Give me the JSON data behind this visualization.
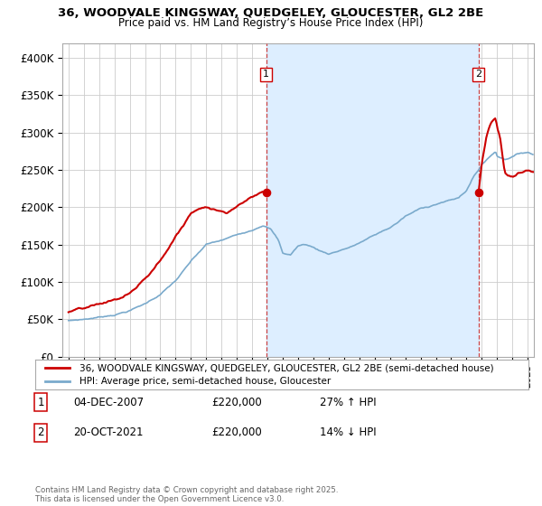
{
  "title": "36, WOODVALE KINGSWAY, QUEDGELEY, GLOUCESTER, GL2 2BE",
  "subtitle": "Price paid vs. HM Land Registry’s House Price Index (HPI)",
  "ylim": [
    0,
    420000
  ],
  "yticks": [
    0,
    50000,
    100000,
    150000,
    200000,
    250000,
    300000,
    350000,
    400000
  ],
  "ytick_labels": [
    "£0",
    "£50K",
    "£100K",
    "£150K",
    "£200K",
    "£250K",
    "£300K",
    "£350K",
    "£400K"
  ],
  "legend_label_red": "36, WOODVALE KINGSWAY, QUEDGELEY, GLOUCESTER, GL2 2BE (semi-detached house)",
  "legend_label_blue": "HPI: Average price, semi-detached house, Gloucester",
  "transaction1_date": "04-DEC-2007",
  "transaction1_price": "£220,000",
  "transaction1_hpi": "27% ↑ HPI",
  "transaction2_date": "20-OCT-2021",
  "transaction2_price": "£220,000",
  "transaction2_hpi": "14% ↓ HPI",
  "footer": "Contains HM Land Registry data © Crown copyright and database right 2025.\nThis data is licensed under the Open Government Licence v3.0.",
  "color_red": "#cc0000",
  "color_blue": "#7aaacc",
  "color_vline": "#cc4444",
  "shade_color": "#ddeeff",
  "background_color": "#ffffff",
  "grid_color": "#cccccc",
  "sale1_x": 2007.92,
  "sale1_y": 220000,
  "sale2_x": 2021.79,
  "sale2_y": 220000,
  "xlim_left": 1994.6,
  "xlim_right": 2025.4
}
